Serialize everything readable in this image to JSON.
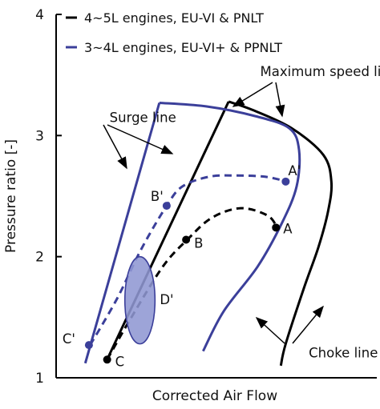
{
  "chart_data": {
    "type": "line",
    "title": "",
    "xlabel": "Corrected Air Flow",
    "ylabel": "Pressure ratio [-]",
    "ylim": [
      1,
      4
    ],
    "xlim": [
      0,
      10
    ],
    "y_ticks": [
      "1",
      "2",
      "3",
      "4"
    ],
    "x_ticks": [],
    "grid": false,
    "legend_position": "top-left",
    "colors": {
      "black_series": "#000000",
      "blue_series": "#3b3f9a",
      "ellipse_fill": "#8f97d3"
    },
    "legend": [
      {
        "label": "4~5L engines, EU-VI & PNLT",
        "color": "#000000",
        "dash": "solid"
      },
      {
        "label": "3~4L engines, EU-VI+ & PPNLT",
        "color": "#3b3f9a",
        "dash": "solid"
      }
    ],
    "series": [
      {
        "color": "#000000",
        "style": "solid",
        "role": "surge",
        "x": [
          0.05,
          5.1
        ],
        "y": [
          1.13,
          3.28
        ]
      },
      {
        "color": "#000000",
        "style": "solid",
        "role": "max_speed_choke",
        "x": [
          5.1,
          6.1,
          7.7,
          9.0,
          9.33,
          9.2,
          8.8,
          8.2,
          7.45,
          7.25
        ],
        "y": [
          3.28,
          3.21,
          3.06,
          2.84,
          2.62,
          2.38,
          2.08,
          1.74,
          1.28,
          1.1
        ]
      },
      {
        "color": "#3b3f9a",
        "style": "solid",
        "role": "surge",
        "x": [
          -0.8,
          2.25
        ],
        "y": [
          1.12,
          3.27
        ]
      },
      {
        "color": "#3b3f9a",
        "style": "solid",
        "role": "max_speed_choke",
        "x": [
          2.25,
          4.2,
          6.2,
          7.6,
          8.0,
          7.9,
          7.3,
          6.3,
          4.9,
          4.05
        ],
        "y": [
          3.27,
          3.24,
          3.16,
          3.06,
          2.88,
          2.58,
          2.28,
          1.92,
          1.55,
          1.22
        ]
      },
      {
        "color": "#000000",
        "style": "dashed",
        "role": "operating_line",
        "x": [
          0.1,
          1.1,
          2.4,
          3.4,
          4.4,
          5.6,
          6.7,
          7.1
        ],
        "y": [
          1.15,
          1.5,
          1.92,
          2.14,
          2.32,
          2.4,
          2.34,
          2.24
        ]
      },
      {
        "color": "#3b3f9a",
        "style": "dashed",
        "role": "operating_line",
        "x": [
          -0.6,
          0.5,
          1.5,
          2.55,
          3.2,
          4.3,
          5.4,
          6.6,
          7.5
        ],
        "y": [
          1.27,
          1.65,
          2.06,
          2.42,
          2.58,
          2.66,
          2.67,
          2.66,
          2.62
        ]
      }
    ],
    "points": [
      {
        "label": "A",
        "x": 7.05,
        "y": 2.24,
        "color": "#000000"
      },
      {
        "label": "B",
        "x": 3.35,
        "y": 2.14,
        "color": "#000000"
      },
      {
        "label": "C",
        "x": 0.1,
        "y": 1.15,
        "color": "#000000"
      },
      {
        "label": "A'",
        "x": 7.45,
        "y": 2.62,
        "color": "#3b3f9a"
      },
      {
        "label": "B'",
        "x": 2.55,
        "y": 2.42,
        "color": "#3b3f9a"
      },
      {
        "label": "C'",
        "x": -0.65,
        "y": 1.27,
        "color": "#3b3f9a"
      }
    ],
    "region": {
      "label": "D'",
      "cx": 1.45,
      "cy": 1.64,
      "rx": 0.62,
      "ry": 0.36,
      "color": "#8f97d3"
    },
    "annotations": [
      {
        "text": "Surge line",
        "label_x": 0.2,
        "label_y": 3.11
      },
      {
        "text": "Maximum speed line",
        "label_x": 6.4,
        "label_y": 3.49
      },
      {
        "text": "Choke line",
        "label_x": 8.4,
        "label_y": 1.17
      }
    ]
  }
}
